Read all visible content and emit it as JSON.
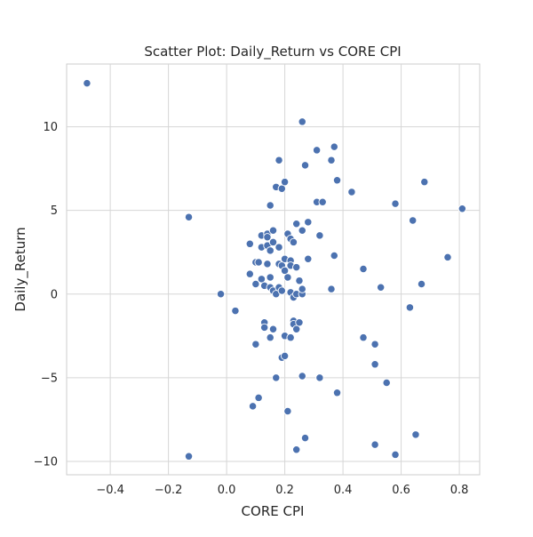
{
  "chart_data": {
    "type": "scatter",
    "title": "Scatter Plot: Daily_Return vs CORE CPI",
    "xlabel": "CORE CPI",
    "ylabel": "Daily_Return",
    "xlim": [
      -0.55,
      0.87
    ],
    "ylim": [
      -10.8,
      13.75
    ],
    "x_ticks": [
      -0.4,
      -0.2,
      0.0,
      0.2,
      0.4,
      0.6,
      0.8
    ],
    "x_tick_labels": [
      "−0.4",
      "−0.2",
      "0.0",
      "0.2",
      "0.4",
      "0.6",
      "0.8"
    ],
    "y_ticks": [
      -10,
      -5,
      0,
      5,
      10
    ],
    "y_tick_labels": [
      "−10",
      "−5",
      "0",
      "5",
      "10"
    ],
    "grid": true,
    "colors": {
      "point": "#4c72b0",
      "grid": "#d6d6d6",
      "frame": "#cccccc",
      "text": "#262626"
    },
    "points": [
      {
        "x": -0.48,
        "y": 12.6
      },
      {
        "x": -0.13,
        "y": 4.6
      },
      {
        "x": -0.13,
        "y": -9.7
      },
      {
        "x": -0.02,
        "y": 0.0
      },
      {
        "x": 0.03,
        "y": -1.0
      },
      {
        "x": 0.08,
        "y": 3.0
      },
      {
        "x": 0.08,
        "y": 1.2
      },
      {
        "x": 0.09,
        "y": -6.7
      },
      {
        "x": 0.1,
        "y": 1.9
      },
      {
        "x": 0.1,
        "y": 0.6
      },
      {
        "x": 0.1,
        "y": -3.0
      },
      {
        "x": 0.11,
        "y": 1.9
      },
      {
        "x": 0.11,
        "y": -6.2
      },
      {
        "x": 0.12,
        "y": 3.5
      },
      {
        "x": 0.12,
        "y": 2.8
      },
      {
        "x": 0.12,
        "y": 0.9
      },
      {
        "x": 0.13,
        "y": -1.7
      },
      {
        "x": 0.13,
        "y": -2.0
      },
      {
        "x": 0.13,
        "y": 0.5
      },
      {
        "x": 0.14,
        "y": 3.6
      },
      {
        "x": 0.14,
        "y": 3.4
      },
      {
        "x": 0.14,
        "y": 2.9
      },
      {
        "x": 0.14,
        "y": 1.8
      },
      {
        "x": 0.15,
        "y": 2.6
      },
      {
        "x": 0.15,
        "y": 1.0
      },
      {
        "x": 0.15,
        "y": 0.4
      },
      {
        "x": 0.15,
        "y": -2.6
      },
      {
        "x": 0.15,
        "y": 5.3
      },
      {
        "x": 0.16,
        "y": 3.8
      },
      {
        "x": 0.16,
        "y": 3.1
      },
      {
        "x": 0.16,
        "y": 0.2
      },
      {
        "x": 0.16,
        "y": -2.1
      },
      {
        "x": 0.17,
        "y": 6.4
      },
      {
        "x": 0.17,
        "y": 0.0
      },
      {
        "x": 0.17,
        "y": -5.0
      },
      {
        "x": 0.18,
        "y": 8.0
      },
      {
        "x": 0.18,
        "y": 2.8
      },
      {
        "x": 0.18,
        "y": 1.8
      },
      {
        "x": 0.18,
        "y": 0.4
      },
      {
        "x": 0.19,
        "y": 6.3
      },
      {
        "x": 0.19,
        "y": 1.7
      },
      {
        "x": 0.19,
        "y": 0.2
      },
      {
        "x": 0.19,
        "y": -3.8
      },
      {
        "x": 0.2,
        "y": 6.7
      },
      {
        "x": 0.2,
        "y": 2.1
      },
      {
        "x": 0.2,
        "y": 1.4
      },
      {
        "x": 0.2,
        "y": -2.5
      },
      {
        "x": 0.2,
        "y": -3.7
      },
      {
        "x": 0.21,
        "y": 3.6
      },
      {
        "x": 0.21,
        "y": 1.0
      },
      {
        "x": 0.21,
        "y": -7.0
      },
      {
        "x": 0.22,
        "y": 3.3
      },
      {
        "x": 0.22,
        "y": 2.0
      },
      {
        "x": 0.22,
        "y": 1.7
      },
      {
        "x": 0.22,
        "y": 0.1
      },
      {
        "x": 0.22,
        "y": -2.6
      },
      {
        "x": 0.23,
        "y": 3.1
      },
      {
        "x": 0.23,
        "y": -0.2
      },
      {
        "x": 0.23,
        "y": -1.6
      },
      {
        "x": 0.23,
        "y": -1.8
      },
      {
        "x": 0.24,
        "y": 4.2
      },
      {
        "x": 0.24,
        "y": 1.6
      },
      {
        "x": 0.24,
        "y": 0.0
      },
      {
        "x": 0.24,
        "y": -2.1
      },
      {
        "x": 0.24,
        "y": -9.3
      },
      {
        "x": 0.25,
        "y": 0.8
      },
      {
        "x": 0.25,
        "y": -1.7
      },
      {
        "x": 0.26,
        "y": 10.3
      },
      {
        "x": 0.26,
        "y": 3.8
      },
      {
        "x": 0.26,
        "y": 0.0
      },
      {
        "x": 0.26,
        "y": 0.3
      },
      {
        "x": 0.26,
        "y": -4.9
      },
      {
        "x": 0.27,
        "y": 7.7
      },
      {
        "x": 0.27,
        "y": -8.6
      },
      {
        "x": 0.28,
        "y": 4.3
      },
      {
        "x": 0.28,
        "y": 2.1
      },
      {
        "x": 0.31,
        "y": 8.6
      },
      {
        "x": 0.31,
        "y": 5.5
      },
      {
        "x": 0.32,
        "y": 3.5
      },
      {
        "x": 0.32,
        "y": -5.0
      },
      {
        "x": 0.33,
        "y": 5.5
      },
      {
        "x": 0.36,
        "y": 8.0
      },
      {
        "x": 0.36,
        "y": 0.3
      },
      {
        "x": 0.37,
        "y": 8.8
      },
      {
        "x": 0.37,
        "y": 2.3
      },
      {
        "x": 0.38,
        "y": 6.8
      },
      {
        "x": 0.38,
        "y": -5.9
      },
      {
        "x": 0.43,
        "y": 6.1
      },
      {
        "x": 0.47,
        "y": 1.5
      },
      {
        "x": 0.47,
        "y": -2.6
      },
      {
        "x": 0.51,
        "y": -3.0
      },
      {
        "x": 0.51,
        "y": -4.2
      },
      {
        "x": 0.51,
        "y": -9.0
      },
      {
        "x": 0.53,
        "y": 0.4
      },
      {
        "x": 0.55,
        "y": -5.3
      },
      {
        "x": 0.58,
        "y": 5.4
      },
      {
        "x": 0.58,
        "y": -9.6
      },
      {
        "x": 0.63,
        "y": -0.8
      },
      {
        "x": 0.64,
        "y": 4.4
      },
      {
        "x": 0.65,
        "y": -8.4
      },
      {
        "x": 0.67,
        "y": 0.6
      },
      {
        "x": 0.68,
        "y": 6.7
      },
      {
        "x": 0.76,
        "y": 2.2
      },
      {
        "x": 0.81,
        "y": 5.1
      }
    ]
  }
}
